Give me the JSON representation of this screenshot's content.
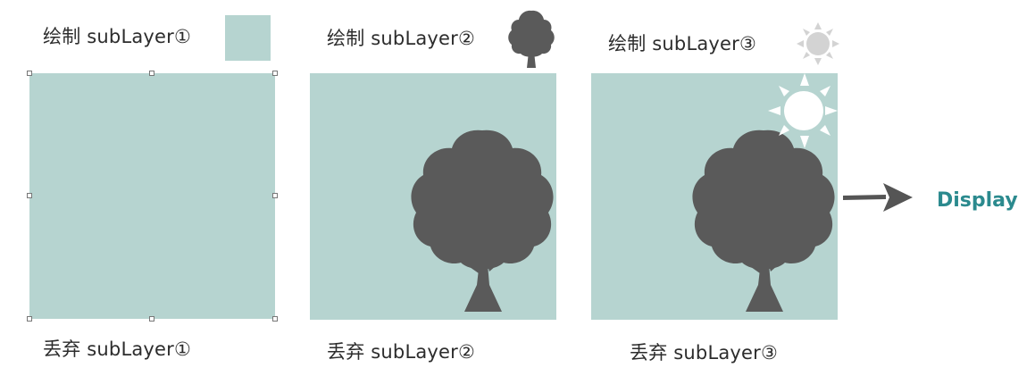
{
  "colors": {
    "layer_fill": "#b6d4d0",
    "tree_fill": "#5a5a5a",
    "sun_fill": "#ffffff",
    "display_text": "#2b8a8e"
  },
  "steps": [
    {
      "draw_label": "绘制 subLayer①",
      "discard_label": "丢弃 subLayer①",
      "icon": "teal-square-icon"
    },
    {
      "draw_label": "绘制 subLayer②",
      "discard_label": "丢弃 subLayer②",
      "icon": "tree-icon"
    },
    {
      "draw_label": "绘制 subLayer③",
      "discard_label": "丢弃 subLayer③",
      "icon": "sun-icon"
    }
  ],
  "output": {
    "label": "Display",
    "icon": "arrow-right-icon"
  }
}
